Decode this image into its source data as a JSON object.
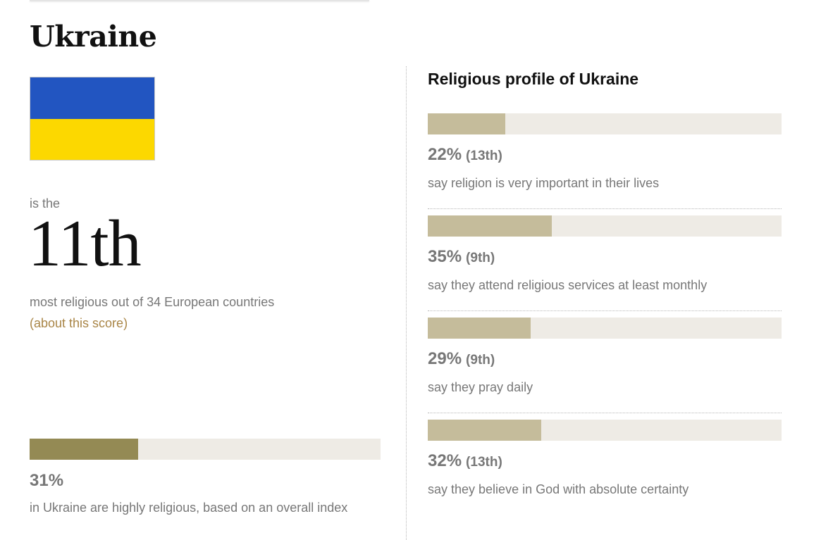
{
  "country": "Ukraine",
  "flag": {
    "top_color": "#2255c1",
    "bottom_color": "#fcd800"
  },
  "rank_block": {
    "intro": "is the",
    "rank": "11th",
    "description": "most religious out of 34 European countries",
    "about_link": "(about this score)"
  },
  "overall": {
    "value": 31,
    "value_label": "31%",
    "description": "in Ukraine are highly religious, based on an overall index",
    "fill_color": "#948a54",
    "track_color": "#eeebe5"
  },
  "profile": {
    "title": "Religious profile of Ukraine"
  },
  "chart_data": {
    "type": "bar",
    "orientation": "horizontal",
    "xlim": [
      0,
      100
    ],
    "unit": "%",
    "fill_color": "#c5bc9b",
    "track_color": "#eeebe5",
    "items": [
      {
        "value": 22,
        "value_label": "22%",
        "rank_label": "(13th)",
        "label": "say religion is very important in their lives"
      },
      {
        "value": 35,
        "value_label": "35%",
        "rank_label": "(9th)",
        "label": "say they attend religious services at least monthly"
      },
      {
        "value": 29,
        "value_label": "29%",
        "rank_label": "(9th)",
        "label": "say they pray daily"
      },
      {
        "value": 32,
        "value_label": "32%",
        "rank_label": "(13th)",
        "label": "say they believe in God with absolute certainty"
      }
    ]
  }
}
